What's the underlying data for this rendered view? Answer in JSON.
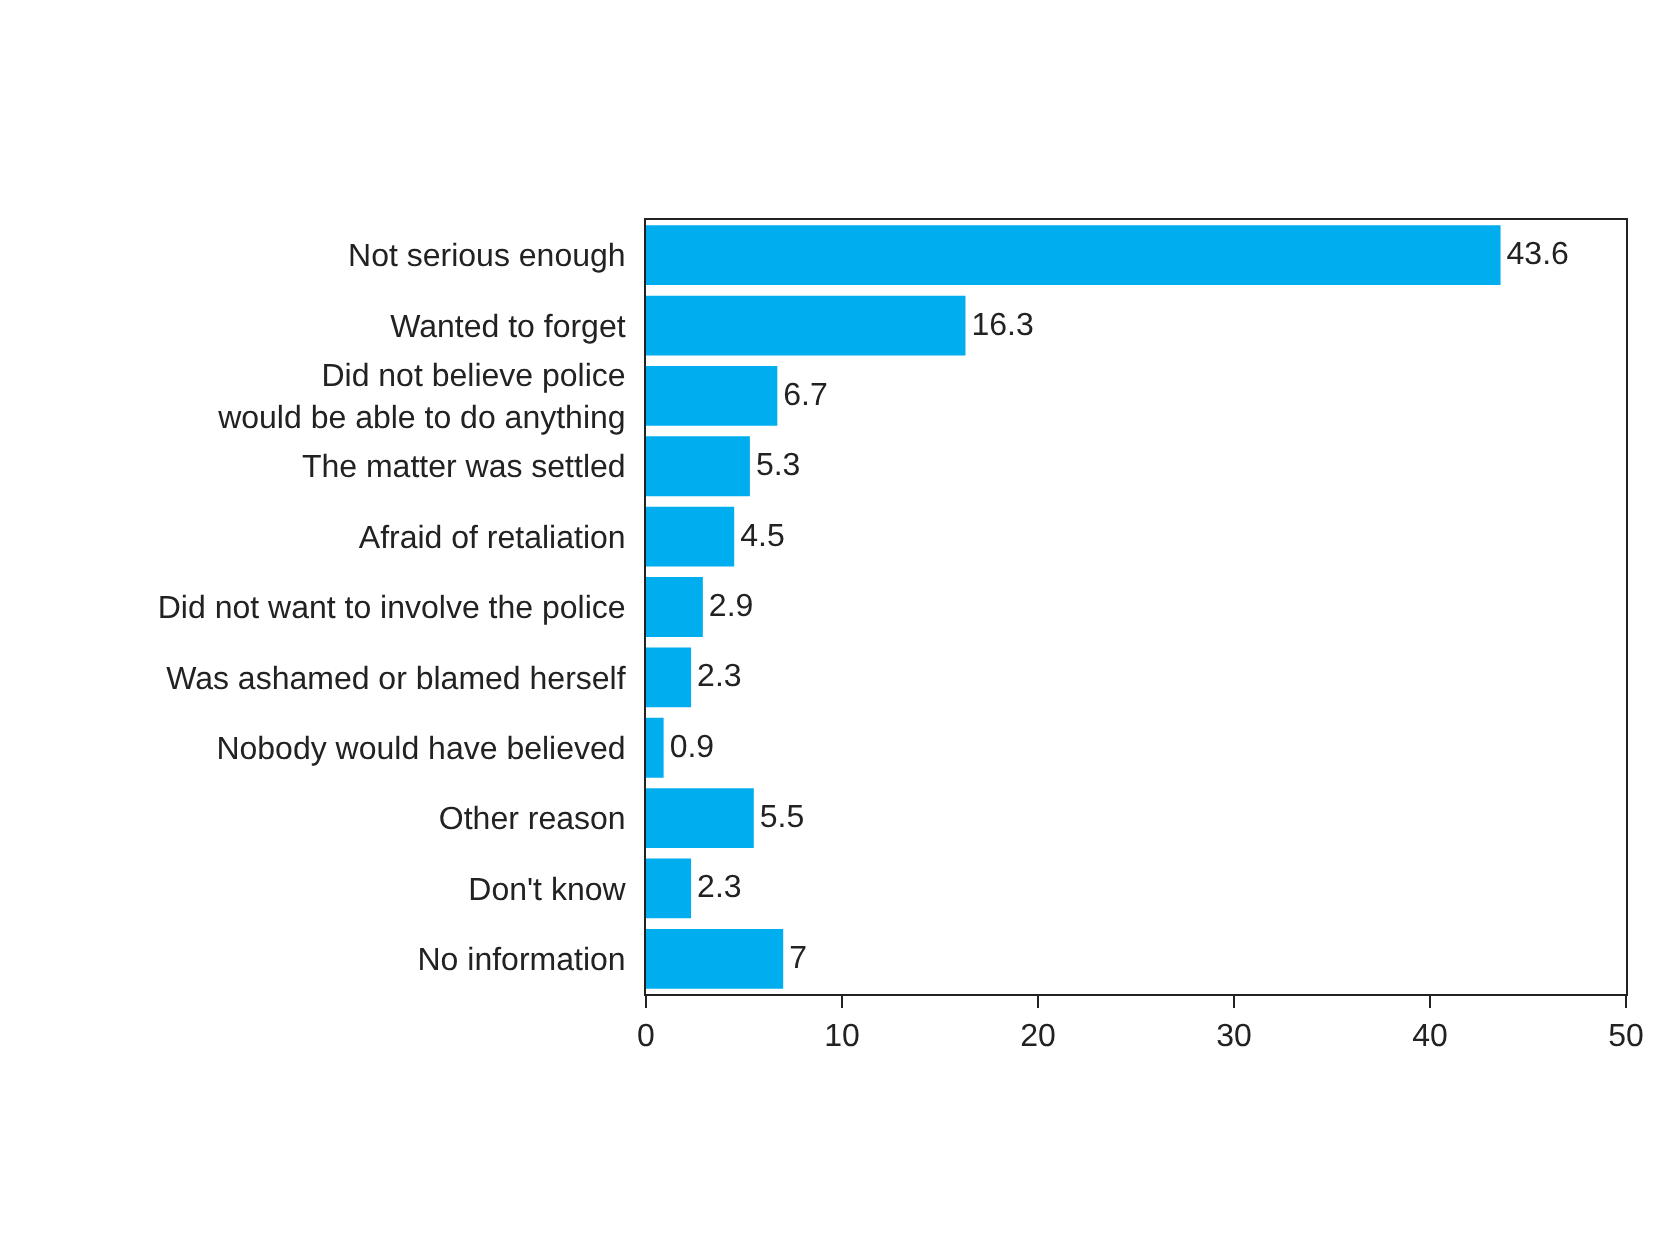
{
  "chart_data": {
    "type": "bar",
    "orientation": "horizontal",
    "categories": [
      "Not serious enough",
      "Wanted to forget",
      "Did not believe police\nwould be able to do anything",
      "The matter was settled",
      "Afraid of retaliation",
      "Did not want to involve the police",
      "Was ashamed or blamed herself",
      "Nobody would have believed",
      "Other reason",
      "Don't know",
      "No information"
    ],
    "values": [
      43.6,
      16.3,
      6.7,
      5.3,
      4.5,
      2.9,
      2.3,
      0.9,
      5.5,
      2.3,
      7
    ],
    "color": "#00aeef",
    "xlim": [
      0,
      50
    ],
    "xticks": [
      0,
      10,
      20,
      30,
      40,
      50
    ],
    "data_labels": true
  }
}
